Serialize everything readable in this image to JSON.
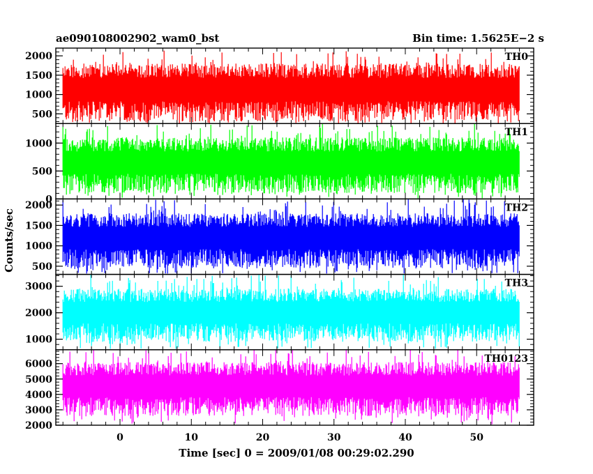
{
  "chart_data": {
    "type": "line",
    "title_left": "ae090108002902_wam0_bst",
    "title_right": "Bin time: 1.5625E−2 s",
    "xlabel": "Time [sec] 0 = 2009/01/08 00:29:02.290",
    "ylabel": "Counts/sec",
    "xlim": [
      -9,
      58
    ],
    "data_x_range": [
      -8,
      56
    ],
    "x_ticks": [
      0,
      10,
      20,
      30,
      40,
      50
    ],
    "x_tick_labels": [
      "0",
      "10",
      "20",
      "30",
      "40",
      "50"
    ],
    "x_minor_step": 2,
    "bin_time": 0.015625,
    "grid": false,
    "panels": [
      {
        "label": "TH0",
        "color": "#ff0000",
        "ylim": [
          250,
          2200
        ],
        "y_ticks": [
          500,
          1000,
          1500,
          2000
        ],
        "y_tick_labels": [
          "500",
          "1000",
          "1500",
          "2000"
        ],
        "y_minor_step": 100,
        "typical_min": 300,
        "typical_max": 1800,
        "peak_max": 2150
      },
      {
        "label": "TH1",
        "color": "#00ff00",
        "ylim": [
          0,
          1350
        ],
        "y_ticks": [
          0,
          500,
          1000
        ],
        "y_tick_labels": [
          "0",
          "500",
          "1000"
        ],
        "y_minor_step": 100,
        "typical_min": 100,
        "typical_max": 1100,
        "peak_max": 1350
      },
      {
        "label": "TH2",
        "color": "#0000ff",
        "ylim": [
          300,
          2150
        ],
        "y_ticks": [
          500,
          1000,
          1500,
          2000
        ],
        "y_tick_labels": [
          "500",
          "1000",
          "1500",
          "2000"
        ],
        "y_minor_step": 100,
        "typical_min": 450,
        "typical_max": 1800,
        "peak_max": 2150
      },
      {
        "label": "TH3",
        "color": "#00ffff",
        "ylim": [
          600,
          3450
        ],
        "y_ticks": [
          1000,
          2000,
          3000
        ],
        "y_tick_labels": [
          "1000",
          "2000",
          "3000"
        ],
        "y_minor_step": 200,
        "typical_min": 900,
        "typical_max": 2900,
        "peak_max": 3450
      },
      {
        "label": "TH0123",
        "color": "#ff00ff",
        "ylim": [
          2000,
          6900
        ],
        "y_ticks": [
          2000,
          3000,
          4000,
          5000,
          6000
        ],
        "y_tick_labels": [
          "2000",
          "3000",
          "4000",
          "5000",
          "6000"
        ],
        "y_minor_step": 200,
        "typical_min": 2600,
        "typical_max": 6100,
        "peak_max": 6900
      }
    ]
  }
}
